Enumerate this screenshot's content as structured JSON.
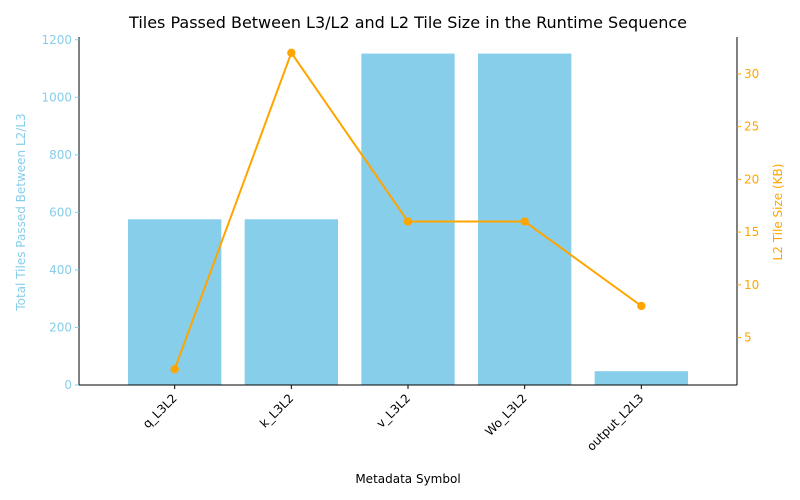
{
  "chart_data": {
    "type": "bar",
    "title": "Tiles Passed Between L3/L2 and L2 Tile Size in the Runtime Sequence",
    "xlabel": "Metadata Symbol",
    "ylabel": "Total Tiles Passed Between L2/L3",
    "y2label": "L2 Tile Size (KB)",
    "categories": [
      "q_L3L2",
      "k_L3L2",
      "v_L3L2",
      "Wo_L3L2",
      "output_L2L3"
    ],
    "series": [
      {
        "type": "bar",
        "axis": "left",
        "color": "#87ceeb",
        "values": [
          576,
          576,
          1152,
          1152,
          48
        ]
      },
      {
        "type": "line",
        "axis": "right",
        "color": "#ffa500",
        "marker": "circle",
        "values": [
          2,
          32,
          16,
          16,
          8
        ]
      }
    ],
    "ylim": [
      0,
      1209.6
    ],
    "y2lim": [
      0.5,
      33.5
    ],
    "yticks": [
      0,
      200,
      400,
      600,
      800,
      1000,
      1200
    ],
    "y2ticks": [
      5,
      10,
      15,
      20,
      25,
      30
    ],
    "grid": false,
    "legend": "none"
  }
}
